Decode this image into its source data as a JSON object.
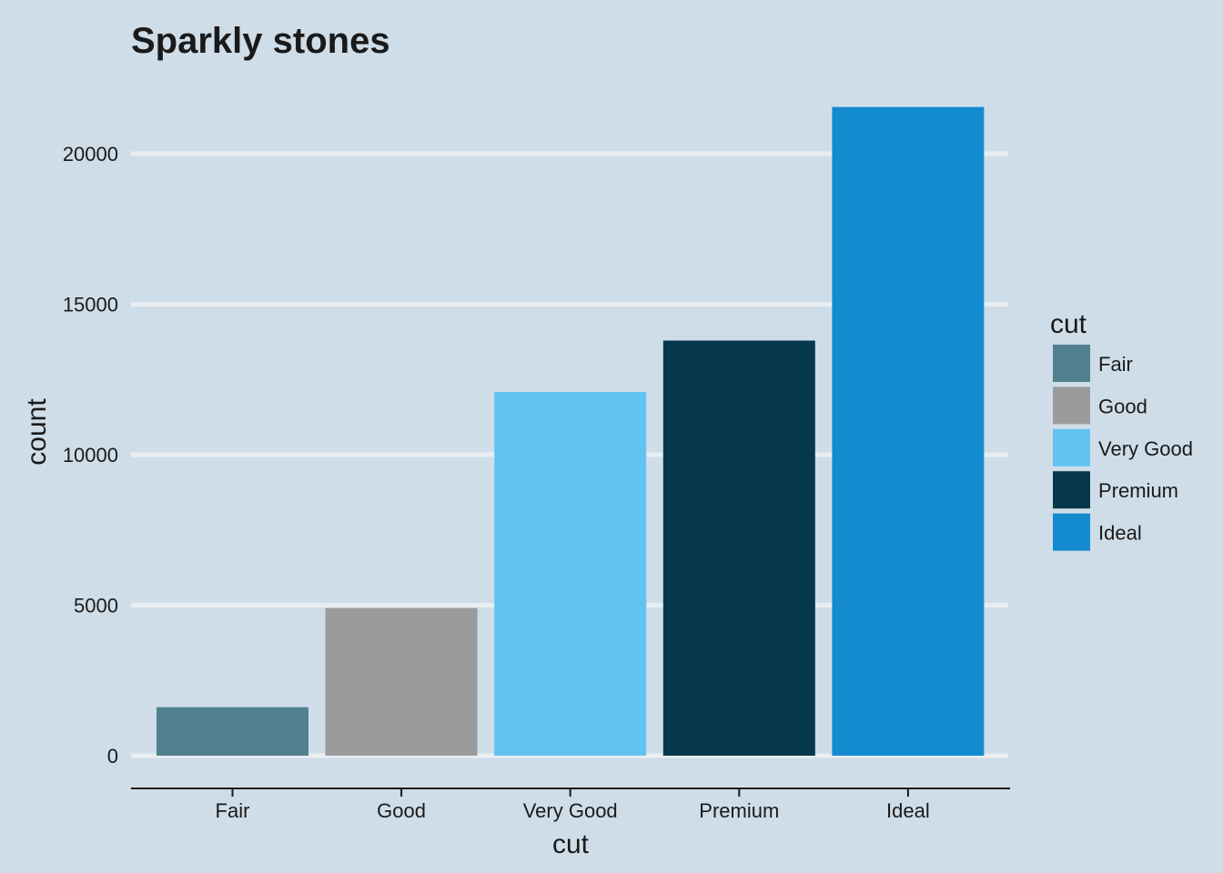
{
  "chart_data": {
    "type": "bar",
    "title": "Sparkly stones",
    "xlabel": "cut",
    "ylabel": "count",
    "categories": [
      "Fair",
      "Good",
      "Very Good",
      "Premium",
      "Ideal"
    ],
    "values": [
      1610,
      4906,
      12082,
      13791,
      21551
    ],
    "colors": [
      "#52808f",
      "#9b9b9d",
      "#63c3f0",
      "#06384b",
      "#148bcf"
    ],
    "ylim": [
      0,
      22000
    ],
    "yticks": [
      0,
      5000,
      10000,
      15000,
      20000
    ],
    "ytick_labels": [
      "0",
      "5000",
      "10000",
      "15000",
      "20000"
    ],
    "grid": true,
    "legend": {
      "title": "cut",
      "placement": "right",
      "entries": [
        "Fair",
        "Good",
        "Very Good",
        "Premium",
        "Ideal"
      ]
    }
  }
}
